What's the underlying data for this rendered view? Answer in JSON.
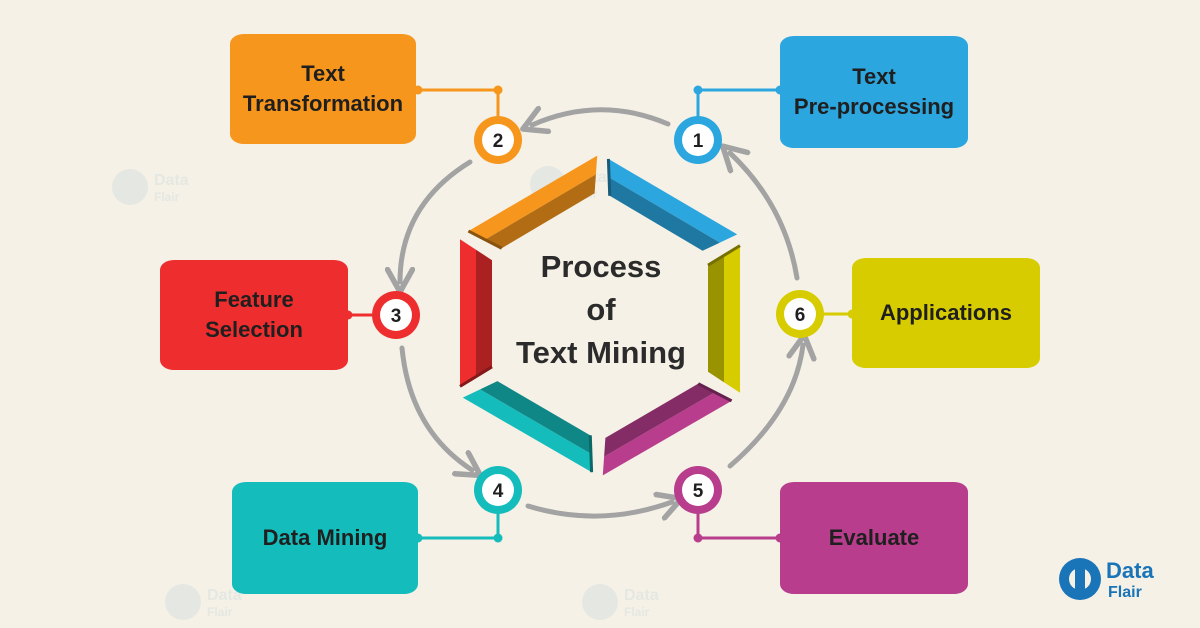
{
  "center_title": [
    "Process",
    "of",
    "Text Mining"
  ],
  "steps": [
    {
      "number": "1",
      "label_lines": [
        "Text",
        "Pre-processing"
      ],
      "color": "#2ba6df"
    },
    {
      "number": "2",
      "label_lines": [
        "Text",
        "Transformation"
      ],
      "color": "#f7961c"
    },
    {
      "number": "3",
      "label_lines": [
        "Feature",
        "Selection"
      ],
      "color": "#ee2e2e"
    },
    {
      "number": "4",
      "label_lines": [
        "Data Mining"
      ],
      "color": "#15bcbc"
    },
    {
      "number": "5",
      "label_lines": [
        "Evaluate"
      ],
      "color": "#b83d8c"
    },
    {
      "number": "6",
      "label_lines": [
        "Applications"
      ],
      "color": "#d6cc00"
    }
  ],
  "logo": {
    "line1": "Data",
    "line2": "Flair",
    "color": "#1a74b8"
  },
  "arrow_color": "#a3a3a3"
}
